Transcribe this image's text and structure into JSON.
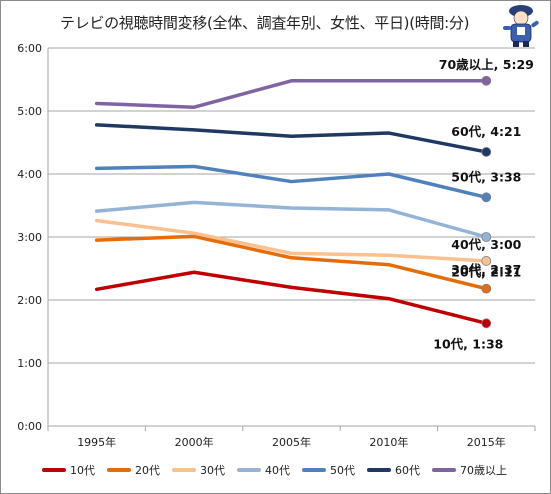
{
  "chart_data": {
    "type": "line",
    "title": "テレビの視聴時間変移(全体、調査年別、女性、平日)(時間:分)",
    "categories": [
      "1995年",
      "2000年",
      "2005年",
      "2010年",
      "2015年"
    ],
    "ylim": [
      0,
      6
    ],
    "y_ticks": [
      "0:00",
      "1:00",
      "2:00",
      "3:00",
      "4:00",
      "5:00",
      "6:00"
    ],
    "grid": true,
    "legend_position": "bottom",
    "series": [
      {
        "name": "10代",
        "color": "#c00000",
        "values": [
          2.17,
          2.44,
          2.2,
          2.02,
          1.63
        ],
        "end_label": "10代, 1:38"
      },
      {
        "name": "20代",
        "color": "#e46c0a",
        "values": [
          2.95,
          3.01,
          2.67,
          2.56,
          2.18
        ],
        "end_label": "20代, 2:11"
      },
      {
        "name": "30代",
        "color": "#fac090",
        "values": [
          3.26,
          3.06,
          2.74,
          2.71,
          2.62
        ],
        "end_label": "30代, 2:37"
      },
      {
        "name": "40代",
        "color": "#95b3d7",
        "values": [
          3.41,
          3.55,
          3.46,
          3.43,
          3.0
        ],
        "end_label": "40代, 3:00"
      },
      {
        "name": "50代",
        "color": "#4f81bd",
        "values": [
          4.09,
          4.12,
          3.88,
          4.0,
          3.63
        ],
        "end_label": "50代, 3:38"
      },
      {
        "name": "60代",
        "color": "#1f3864",
        "values": [
          4.78,
          4.7,
          4.6,
          4.65,
          4.35
        ],
        "end_label": "60代, 4:21"
      },
      {
        "name": "70歳以上",
        "color": "#8064a2",
        "values": [
          5.12,
          5.06,
          5.48,
          5.48,
          5.48
        ],
        "end_label": "70歳以上, 5:29"
      }
    ]
  }
}
